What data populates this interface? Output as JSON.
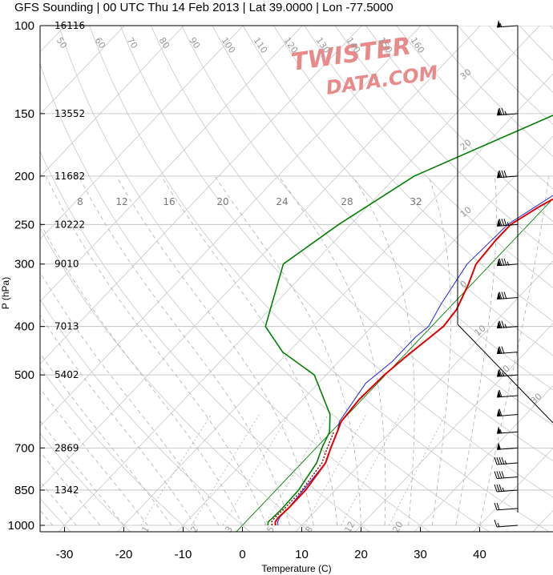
{
  "title": "GFS Sounding | 00 UTC Thu 14 Feb 2013 | Lat 39.0000 | Lon -77.5000",
  "watermark": {
    "line1": "TWISTER",
    "line2": "DATA.COM",
    "color": "#e88a8a"
  },
  "colors": {
    "temperature": "#e00000",
    "dewpoint": "#008000",
    "virtual_temperature": "#2222dd",
    "isobar": "#bbbbbb",
    "skewed_isotherm": "#c8c8c8",
    "dry_adiabat": "#c8c8c8",
    "moist_adiabat": "#b0b0b0",
    "mixing_ratio": "#b0b0b0",
    "zero_isotherm": "#008000"
  },
  "chart_data": {
    "type": "line",
    "subtype": "skew-t log-p sounding",
    "xlabel": "Temperature (C)",
    "ylabel": "P (hPa)",
    "xlim": [
      -34,
      52
    ],
    "ylim": [
      1000,
      100
    ],
    "y_scale": "log",
    "x_ticks": [
      "-30",
      "-20",
      "-10",
      "0",
      "10",
      "20",
      "30",
      "40"
    ],
    "y_ticks": [
      "100",
      "150",
      "200",
      "250",
      "300",
      "400",
      "500",
      "700",
      "850",
      "1000"
    ],
    "grid": true,
    "heights": [
      {
        "p": 100,
        "label": "16116"
      },
      {
        "p": 150,
        "label": "13552"
      },
      {
        "p": 200,
        "label": "11682"
      },
      {
        "p": 250,
        "label": "10222"
      },
      {
        "p": 300,
        "label": "9010"
      },
      {
        "p": 400,
        "label": "7013"
      },
      {
        "p": 500,
        "label": "5402"
      },
      {
        "p": 700,
        "label": "2869"
      },
      {
        "p": 850,
        "label": "1342"
      }
    ],
    "series": [
      {
        "key": "temperature",
        "x": [
          5.6,
          5.0,
          4.8,
          5.0,
          5.0,
          4.0,
          2.5,
          1.0,
          0.0,
          -0.5,
          -0.2,
          0.5,
          1.5,
          2.0,
          1.5,
          -0.5,
          -2.5,
          -3.0,
          -3.0,
          -1.0,
          3.5,
          10.0,
          13.0,
          15.5
        ],
        "y": [
          1000,
          985,
          965,
          925,
          850,
          750,
          700,
          650,
          620,
          560,
          500,
          460,
          420,
          400,
          370,
          330,
          300,
          270,
          250,
          230,
          200,
          150,
          120,
          100
        ]
      },
      {
        "key": "virtual_temperature",
        "x": [
          6.0,
          5.4,
          5.0,
          5.0,
          4.0,
          2.5,
          1.0,
          -0.3,
          -2.0,
          -1.0,
          -1.0,
          -0.5,
          -2.0,
          -4.0,
          -3.5,
          1.5,
          8.5,
          12.0,
          14.5
        ],
        "y": [
          1000,
          985,
          965,
          925,
          750,
          700,
          650,
          620,
          520,
          470,
          420,
          400,
          360,
          300,
          250,
          200,
          150,
          120,
          100
        ]
      },
      {
        "key": "dewpoint",
        "x": [
          4.3,
          3.8,
          3.9,
          4.0,
          3.8,
          2.5,
          1.0,
          -0.3,
          -3.0,
          -12.0,
          -21.0,
          -28.0,
          -35.0,
          -32.0,
          -27.0,
          -13.0,
          -23.0
        ],
        "y": [
          1000,
          985,
          965,
          925,
          850,
          750,
          700,
          650,
          600,
          500,
          450,
          400,
          300,
          250,
          200,
          150,
          100
        ]
      }
    ],
    "annotations": {
      "isotherm_ticks": [
        "-30",
        "-20",
        "-10",
        "0",
        "10",
        "20",
        "30"
      ],
      "dry_adiabat_labels": [
        "50",
        "60",
        "70",
        "80",
        "90",
        "100",
        "110",
        "120",
        "130",
        "140",
        "150",
        "160"
      ],
      "mixing_ratio_labels": [
        "1",
        "2",
        "3",
        "5",
        "8",
        "12",
        "20"
      ],
      "moist_labels": [
        "8",
        "12",
        "16",
        "20",
        "24",
        "28",
        "32"
      ]
    },
    "winds": {
      "levels": [
        1000,
        925,
        850,
        800,
        750,
        700,
        650,
        600,
        550,
        500,
        450,
        400,
        350,
        300,
        250,
        200,
        150,
        100
      ],
      "speed_kt": [
        15,
        20,
        35,
        40,
        45,
        50,
        55,
        60,
        60,
        65,
        70,
        75,
        80,
        85,
        85,
        80,
        75,
        55
      ]
    }
  }
}
